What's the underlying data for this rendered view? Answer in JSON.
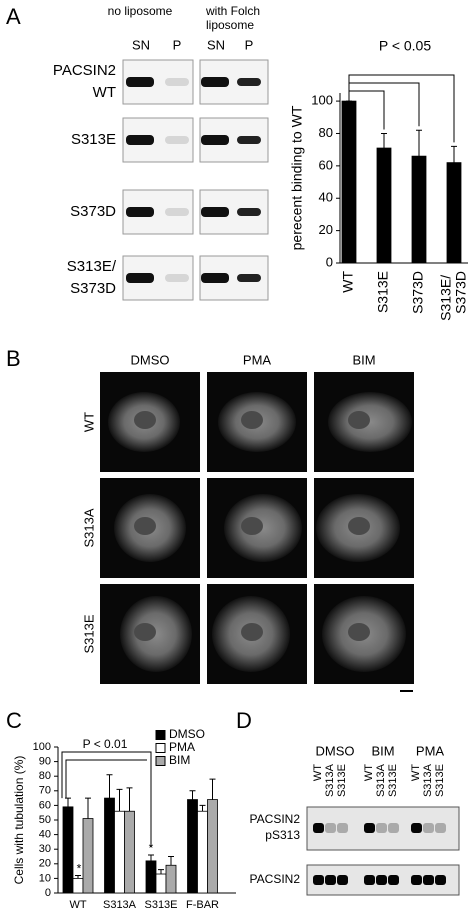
{
  "panel_labels": [
    "A",
    "B",
    "C",
    "D"
  ],
  "panel_a_gel": {
    "conditions": [
      [
        "no liposome"
      ],
      [
        "with Folch",
        "liposome"
      ]
    ],
    "lanes": [
      "SN",
      "P",
      "SN",
      "P"
    ],
    "rows": [
      [
        "PACSIN2",
        "WT"
      ],
      [
        "S313E"
      ],
      [
        "S373D"
      ],
      [
        "S313E/",
        "S373D"
      ]
    ]
  },
  "panel_b": {
    "columns": [
      "DMSO",
      "PMA",
      "BIM"
    ],
    "rows": [
      "WT",
      "S313A",
      "S313E"
    ]
  },
  "panel_d": {
    "groups": [
      "DMSO",
      "BIM",
      "PMA"
    ],
    "lanes": [
      "WT",
      "S313A",
      "S313E",
      "WT",
      "S313A",
      "S313E",
      "WT",
      "S313A",
      "S313E"
    ],
    "rows": [
      [
        "PACSIN2",
        "pS313"
      ],
      [
        "PACSIN2"
      ]
    ]
  },
  "chart_data": [
    {
      "type": "bar",
      "categories": [
        "WT",
        "S313E",
        "S373D",
        "S313E/ S373D"
      ],
      "values": [
        100,
        71,
        66,
        62
      ],
      "errors": [
        0,
        9,
        16,
        10
      ],
      "color": "#000000",
      "ylabel": "perecent binding to WT",
      "annotation": "P < 0.05",
      "ylim": [
        0,
        105
      ],
      "yticks": [
        0,
        20,
        40,
        60,
        80,
        100
      ]
    },
    {
      "type": "bar",
      "categories": [
        "WT",
        "S313A",
        "S313E",
        "F-BAR"
      ],
      "series": [
        {
          "name": "DMSO",
          "color": "#000000",
          "values": [
            59,
            65,
            22,
            64
          ],
          "errors": [
            6,
            16,
            4,
            6
          ]
        },
        {
          "name": "PMA",
          "color": "#ffffff",
          "values": [
            10,
            56,
            13,
            56
          ],
          "errors": [
            2,
            15,
            3,
            4
          ]
        },
        {
          "name": "BIM",
          "color": "#aaaaaa",
          "values": [
            51,
            56,
            19,
            64
          ],
          "errors": [
            14,
            16,
            6,
            14
          ]
        }
      ],
      "ylabel": "Cells with tubulation (%)",
      "annotation": "P < 0.01",
      "markers": [
        "*",
        "*"
      ],
      "legend": "top-right",
      "ylim": [
        0,
        100
      ],
      "yticks": [
        0,
        10,
        20,
        30,
        40,
        50,
        60,
        70,
        80,
        90,
        100
      ]
    }
  ]
}
